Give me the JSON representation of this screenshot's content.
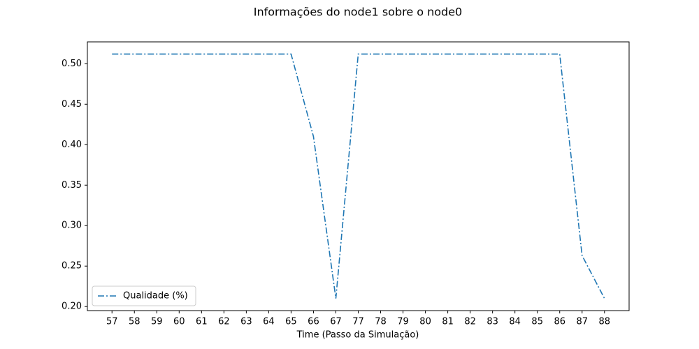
{
  "chart_data": {
    "type": "line",
    "title": "Informações do node1 sobre o node0",
    "x_label": "Time (Passo da Simulação)",
    "categories": [
      "57",
      "58",
      "59",
      "60",
      "61",
      "62",
      "63",
      "64",
      "65",
      "66",
      "67",
      "77",
      "78",
      "79",
      "80",
      "81",
      "82",
      "83",
      "84",
      "85",
      "86",
      "87",
      "88"
    ],
    "series": [
      {
        "name": "Qualidade (%)",
        "color": "#1f77b4",
        "values": [
          0.512,
          0.512,
          0.512,
          0.512,
          0.512,
          0.512,
          0.512,
          0.512,
          0.512,
          0.41,
          0.21,
          0.512,
          0.512,
          0.512,
          0.512,
          0.512,
          0.512,
          0.512,
          0.512,
          0.512,
          0.512,
          0.263,
          0.21
        ]
      }
    ],
    "ylim": [
      0.195,
      0.527
    ],
    "yticks": [
      {
        "value": 0.2,
        "label": "0.20"
      },
      {
        "value": 0.25,
        "label": "0.25"
      },
      {
        "value": 0.3,
        "label": "0.30"
      },
      {
        "value": 0.35,
        "label": "0.35"
      },
      {
        "value": 0.4,
        "label": "0.40"
      },
      {
        "value": 0.45,
        "label": "0.45"
      },
      {
        "value": 0.5,
        "label": "0.50"
      }
    ],
    "grid": false,
    "legend_position": "lower left"
  }
}
